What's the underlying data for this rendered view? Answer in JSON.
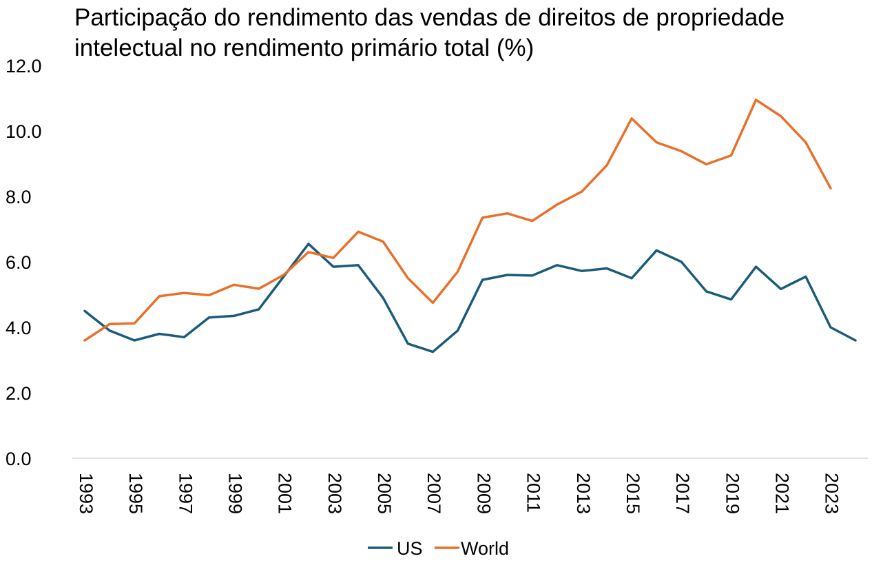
{
  "chart_data": {
    "type": "line",
    "title": "Participação do rendimento das vendas de direitos de propriedade intelectual no rendimento primário total (%)",
    "xlabel": "",
    "ylabel": "",
    "x": [
      1993,
      1994,
      1995,
      1996,
      1997,
      1998,
      1999,
      2000,
      2001,
      2002,
      2003,
      2004,
      2005,
      2006,
      2007,
      2008,
      2009,
      2010,
      2011,
      2012,
      2013,
      2014,
      2015,
      2016,
      2017,
      2018,
      2019,
      2020,
      2021,
      2022,
      2023,
      2024
    ],
    "x_tick_labels": [
      "1993",
      "1995",
      "1997",
      "1999",
      "2001",
      "2003",
      "2005",
      "2007",
      "2009",
      "2011",
      "2013",
      "2015",
      "2017",
      "2019",
      "2021",
      "2023"
    ],
    "y_tick_labels": [
      "0.0",
      "2.0",
      "4.0",
      "6.0",
      "8.0",
      "10.0",
      "12.0"
    ],
    "ylim": [
      0,
      12
    ],
    "grid": false,
    "legend_position": "bottom-center",
    "series": [
      {
        "name": "US",
        "color": "#1a5c7a",
        "values": [
          4.5,
          3.9,
          3.6,
          3.8,
          3.7,
          4.3,
          4.35,
          4.55,
          5.55,
          6.55,
          5.85,
          5.9,
          4.9,
          3.5,
          3.25,
          3.9,
          5.45,
          5.6,
          5.58,
          5.9,
          5.72,
          5.8,
          5.5,
          6.35,
          6.0,
          5.1,
          4.85,
          5.85,
          5.17,
          5.55,
          4.0,
          3.6
        ]
      },
      {
        "name": "World",
        "color": "#e8702a",
        "values": [
          3.6,
          4.1,
          4.12,
          4.95,
          5.05,
          4.98,
          5.3,
          5.18,
          5.6,
          6.3,
          6.12,
          6.92,
          6.62,
          5.5,
          4.75,
          5.7,
          7.35,
          7.48,
          7.25,
          7.75,
          8.15,
          8.95,
          10.38,
          9.65,
          9.38,
          8.98,
          9.25,
          10.95,
          10.45,
          9.65,
          8.25,
          null
        ]
      }
    ]
  }
}
